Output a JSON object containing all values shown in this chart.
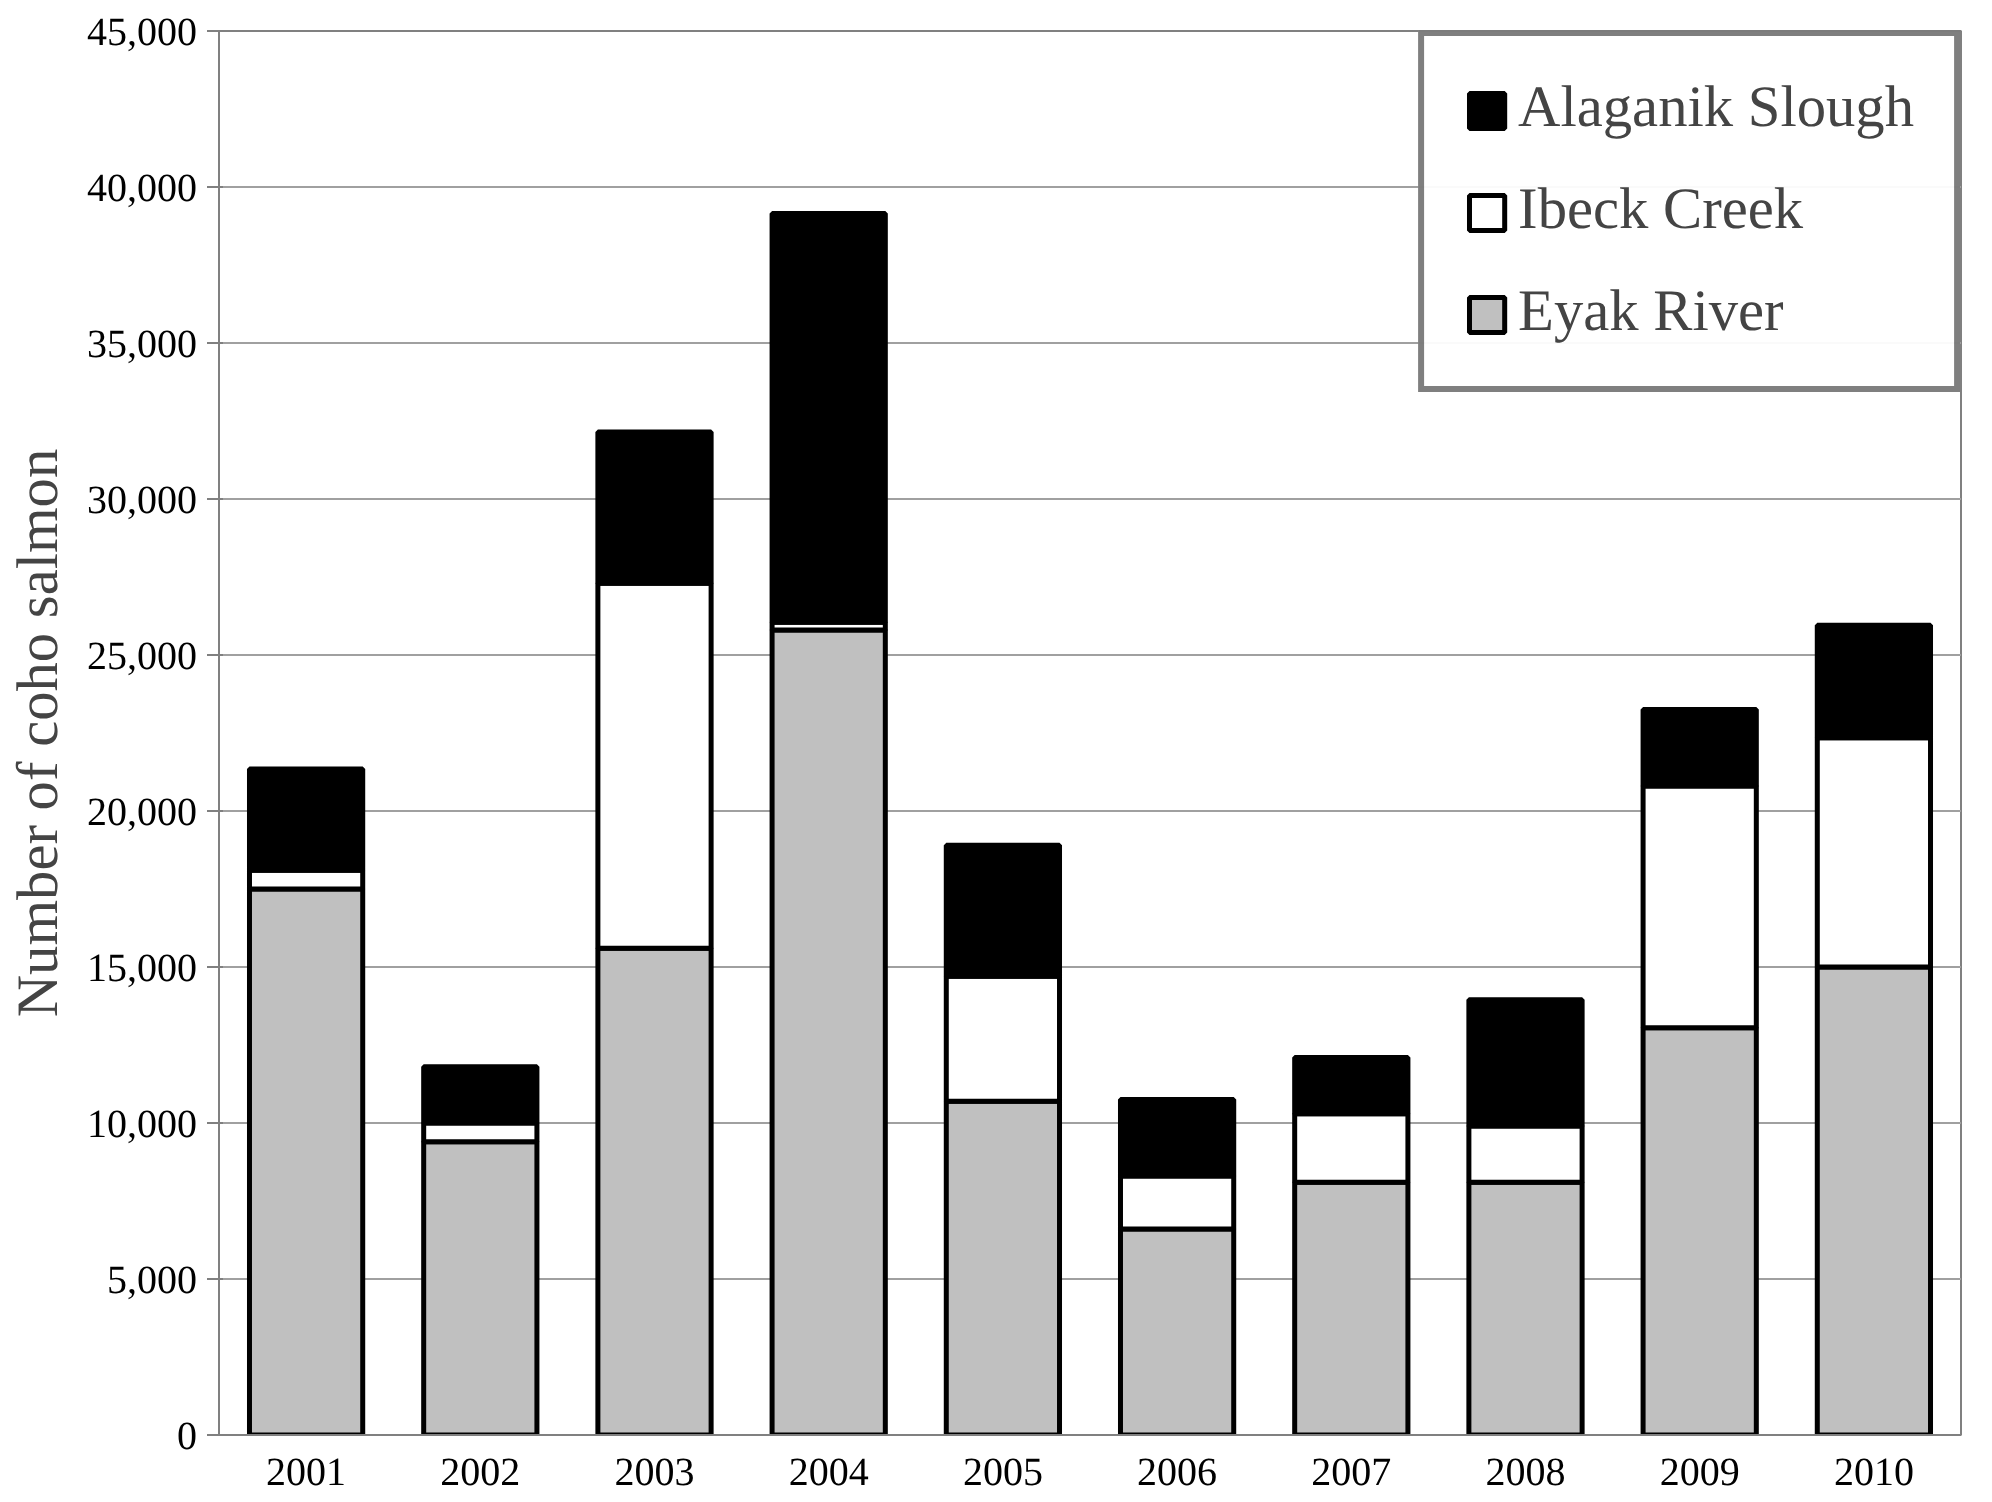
{
  "chart_data": {
    "type": "bar",
    "stacked": true,
    "ylabel": "Number of coho salmon",
    "categories": [
      "2001",
      "2002",
      "2003",
      "2004",
      "2005",
      "2006",
      "2007",
      "2008",
      "2009",
      "2010"
    ],
    "series": [
      {
        "name": "Eyak River",
        "color": "#c0c0c0",
        "values": [
          17500,
          9400,
          15600,
          25800,
          10700,
          6600,
          8100,
          8100,
          13050,
          15000
        ]
      },
      {
        "name": "Ibeck Creek",
        "color": "#ffffff",
        "values": [
          600,
          600,
          11700,
          250,
          4000,
          1700,
          2200,
          1800,
          7750,
          7350
        ]
      },
      {
        "name": "Alaganik Slough",
        "color": "#000000",
        "values": [
          3250,
          1800,
          4850,
          13100,
          4200,
          2450,
          1800,
          4050,
          2450,
          3600
        ]
      }
    ],
    "ylim": [
      0,
      45000
    ],
    "yticks": [
      {
        "value": 0,
        "label": "0"
      },
      {
        "value": 5000,
        "label": "5,000"
      },
      {
        "value": 10000,
        "label": "10,000"
      },
      {
        "value": 15000,
        "label": "15,000"
      },
      {
        "value": 20000,
        "label": "20,000"
      },
      {
        "value": 25000,
        "label": "25,000"
      },
      {
        "value": 30000,
        "label": "30,000"
      },
      {
        "value": 35000,
        "label": "35,000"
      },
      {
        "value": 40000,
        "label": "40,000"
      },
      {
        "value": 45000,
        "label": "45,000"
      }
    ],
    "grid": "y",
    "legend": "top right"
  }
}
